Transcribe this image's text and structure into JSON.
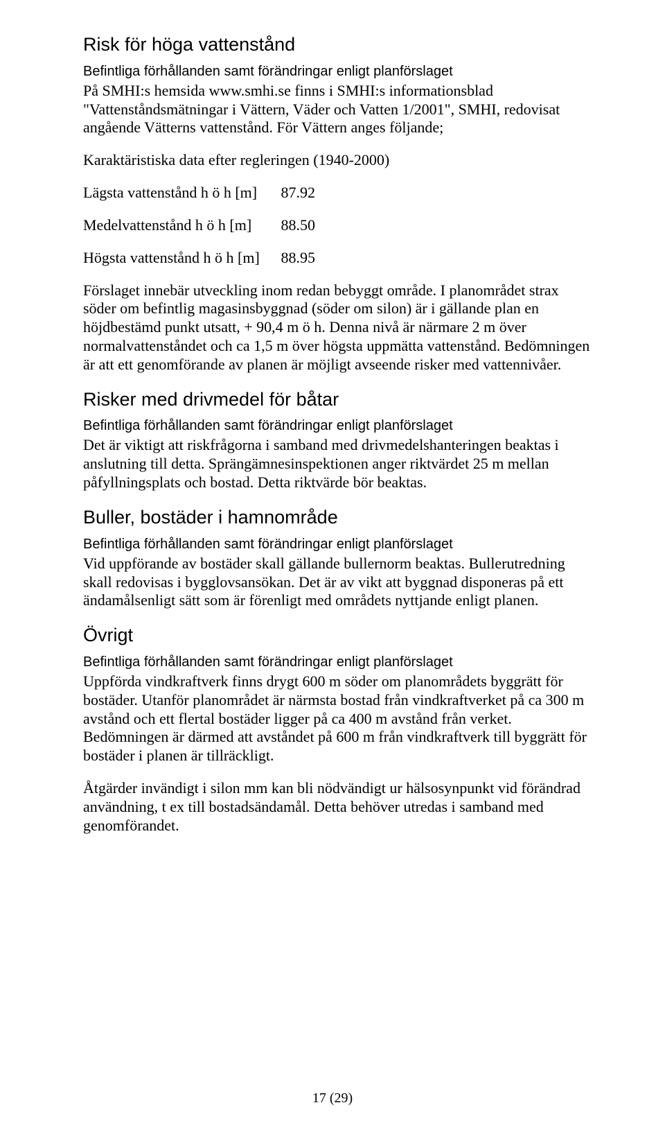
{
  "section1": {
    "heading": "Risk för höga vattenstånd",
    "subheading": "Befintliga förhållanden samt förändringar enligt planförslaget",
    "intro": "På SMHI:s hemsida www.smhi.se finns i SMHI:s informationsblad \"Vattenståndsmätningar i Vättern, Väder och Vatten 1/2001\", SMHI, redovisat angående Vätterns vattenstånd. För Vättern anges följande;",
    "data_caption": "Karaktäristiska data efter regleringen (1940-2000)",
    "rows": [
      {
        "label": "Lägsta vattenstånd h ö h [m]",
        "value": "87.92"
      },
      {
        "label": "Medelvattenstånd h ö h [m]",
        "value": "88.50"
      },
      {
        "label": "Högsta vattenstånd h ö h [m]",
        "value": "88.95"
      }
    ],
    "para": "Förslaget innebär utveckling inom redan bebyggt område. I planområdet strax söder om befintlig magasinsbyggnad (söder om silon) är i gällande plan en höjdbestämd punkt utsatt, + 90,4 m ö h. Denna nivå är närmare 2 m över normalvattenståndet och ca 1,5 m över högsta uppmätta vattenstånd. Bedömningen är att ett genomförande av planen är möjligt avseende risker med vattennivåer."
  },
  "section2": {
    "heading": "Risker med drivmedel för båtar",
    "subheading": "Befintliga förhållanden samt förändringar enligt planförslaget",
    "para": "Det är viktigt att riskfrågorna i samband med drivmedelshanteringen beaktas i anslutning till detta. Sprängämnesinspektionen anger riktvärdet 25 m mellan påfyllningsplats och bostad. Detta riktvärde bör beaktas."
  },
  "section3": {
    "heading": "Buller, bostäder i hamnområde",
    "subheading": "Befintliga förhållanden samt förändringar enligt planförslaget",
    "para": "Vid uppförande av bostäder skall gällande bullernorm beaktas. Bullerutredning skall redovisas i bygglovsansökan. Det är av vikt att byggnad disponeras på ett ändamålsenligt sätt som är förenligt med områdets nyttjande enligt planen."
  },
  "section4": {
    "heading": "Övrigt",
    "subheading": "Befintliga förhållanden samt förändringar enligt planförslaget",
    "para1": "Uppförda vindkraftverk finns drygt 600 m söder om planområdets byggrätt för bostäder. Utanför planområdet är närmsta bostad från vindkraftverket på ca 300 m avstånd och ett flertal bostäder ligger på ca 400 m avstånd från verket. Bedömningen är därmed att avståndet på 600 m från vindkraftverk till byggrätt för bostäder i planen är tillräckligt.",
    "para2": "Åtgärder invändigt i silon mm kan bli nödvändigt ur hälsosynpunkt vid förändrad användning, t ex till bostadsändamål. Detta behöver utredas i samband med genomförandet."
  },
  "footer": "17 (29)"
}
